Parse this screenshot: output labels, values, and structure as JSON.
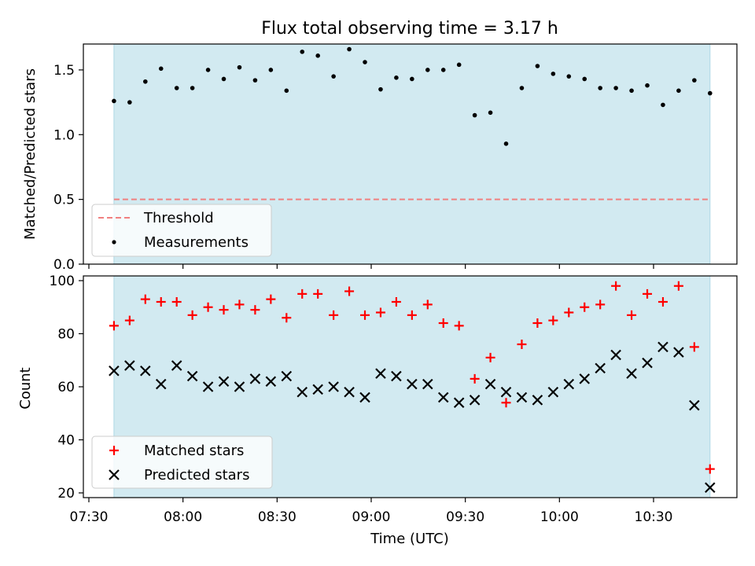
{
  "chart_data": [
    {
      "type": "scatter",
      "title": "Flux total observing time = 3.17 h",
      "ylabel": "Matched/Predicted stars",
      "xlabel": "",
      "ylim": [
        0,
        1.7
      ],
      "yticks": [
        "0.0",
        "0.5",
        "1.0",
        "1.5"
      ],
      "shaded_span": [
        "07:38",
        "10:48"
      ],
      "shade_color": "#add8e6",
      "legend_position": "lower-left",
      "threshold": {
        "name": "Threshold",
        "value": 0.5,
        "color": "#f08080"
      },
      "series": [
        {
          "name": "Measurements",
          "marker": "dot",
          "color": "#000000",
          "x": [
            "07:38",
            "07:43",
            "07:48",
            "07:53",
            "07:58",
            "08:03",
            "08:08",
            "08:13",
            "08:18",
            "08:23",
            "08:28",
            "08:33",
            "08:38",
            "08:43",
            "08:48",
            "08:53",
            "08:58",
            "09:03",
            "09:08",
            "09:13",
            "09:18",
            "09:23",
            "09:28",
            "09:33",
            "09:38",
            "09:43",
            "09:48",
            "09:53",
            "09:58",
            "10:03",
            "10:08",
            "10:13",
            "10:18",
            "10:23",
            "10:28",
            "10:33",
            "10:38",
            "10:43",
            "10:48"
          ],
          "values": [
            1.26,
            1.25,
            1.41,
            1.51,
            1.36,
            1.36,
            1.5,
            1.43,
            1.52,
            1.42,
            1.5,
            1.34,
            1.64,
            1.61,
            1.45,
            1.66,
            1.56,
            1.35,
            1.44,
            1.43,
            1.5,
            1.5,
            1.54,
            1.15,
            1.17,
            0.93,
            1.36,
            1.53,
            1.47,
            1.45,
            1.43,
            1.36,
            1.36,
            1.34,
            1.38,
            1.23,
            1.34,
            1.42,
            1.32
          ]
        }
      ]
    },
    {
      "type": "scatter",
      "title": "",
      "ylabel": "Count",
      "xlabel": "Time (UTC)",
      "ylim": [
        19,
        101
      ],
      "yticks": [
        "20",
        "40",
        "60",
        "80",
        "100"
      ],
      "xticks": [
        "07:30",
        "08:00",
        "08:30",
        "09:00",
        "09:30",
        "10:00",
        "10:30"
      ],
      "shaded_span": [
        "07:38",
        "10:48"
      ],
      "shade_color": "#add8e6",
      "legend_position": "lower-left",
      "series": [
        {
          "name": "Matched stars",
          "marker": "plus",
          "color": "#ff0000",
          "x": [
            "07:38",
            "07:43",
            "07:48",
            "07:53",
            "07:58",
            "08:03",
            "08:08",
            "08:13",
            "08:18",
            "08:23",
            "08:28",
            "08:33",
            "08:38",
            "08:43",
            "08:48",
            "08:53",
            "08:58",
            "09:03",
            "09:08",
            "09:13",
            "09:18",
            "09:23",
            "09:28",
            "09:33",
            "09:38",
            "09:43",
            "09:48",
            "09:53",
            "09:58",
            "10:03",
            "10:08",
            "10:13",
            "10:18",
            "10:23",
            "10:28",
            "10:33",
            "10:38",
            "10:43",
            "10:48"
          ],
          "values": [
            83,
            85,
            93,
            92,
            92,
            87,
            90,
            89,
            91,
            89,
            93,
            86,
            95,
            95,
            87,
            96,
            87,
            88,
            92,
            87,
            91,
            84,
            83,
            63,
            71,
            54,
            76,
            84,
            85,
            88,
            90,
            91,
            98,
            87,
            95,
            92,
            98,
            75,
            29
          ]
        },
        {
          "name": "Predicted stars",
          "marker": "x",
          "color": "#000000",
          "x": [
            "07:38",
            "07:43",
            "07:48",
            "07:53",
            "07:58",
            "08:03",
            "08:08",
            "08:13",
            "08:18",
            "08:23",
            "08:28",
            "08:33",
            "08:38",
            "08:43",
            "08:48",
            "08:53",
            "08:58",
            "09:03",
            "09:08",
            "09:13",
            "09:18",
            "09:23",
            "09:28",
            "09:33",
            "09:38",
            "09:43",
            "09:48",
            "09:53",
            "09:58",
            "10:03",
            "10:08",
            "10:13",
            "10:18",
            "10:23",
            "10:28",
            "10:33",
            "10:38",
            "10:43",
            "10:48"
          ],
          "values": [
            66,
            68,
            66,
            61,
            68,
            64,
            60,
            62,
            60,
            63,
            62,
            64,
            58,
            59,
            60,
            58,
            56,
            65,
            64,
            61,
            61,
            56,
            54,
            55,
            61,
            58,
            56,
            55,
            58,
            61,
            63,
            67,
            72,
            65,
            69,
            75,
            73,
            53,
            22
          ]
        }
      ]
    }
  ]
}
